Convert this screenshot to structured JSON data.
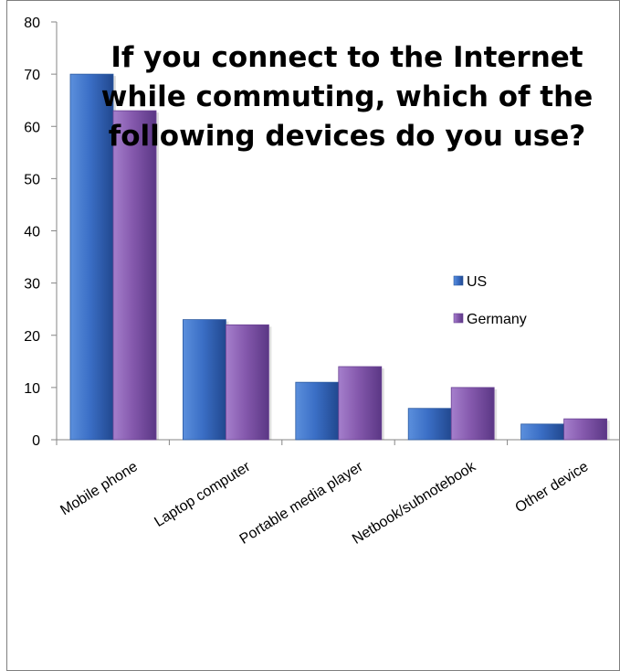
{
  "chart_data": {
    "type": "bar",
    "title": "If you connect to the Internet while commuting, which of the following devices do you use?",
    "categories": [
      "Mobile phone",
      "Laptop computer",
      "Portable media player",
      "Netbook/subnotebook",
      "Other device"
    ],
    "series": [
      {
        "name": "US",
        "values": [
          70,
          23,
          11,
          6,
          3
        ],
        "color": "#3a6fc4"
      },
      {
        "name": "Germany",
        "values": [
          63,
          22,
          14,
          10,
          4
        ],
        "color": "#8559ac"
      }
    ],
    "xlabel": "",
    "ylabel": "",
    "ylim": [
      0,
      80
    ],
    "yticks": [
      0,
      10,
      20,
      30,
      40,
      50,
      60,
      70,
      80
    ],
    "grid": false,
    "legend": "right"
  }
}
